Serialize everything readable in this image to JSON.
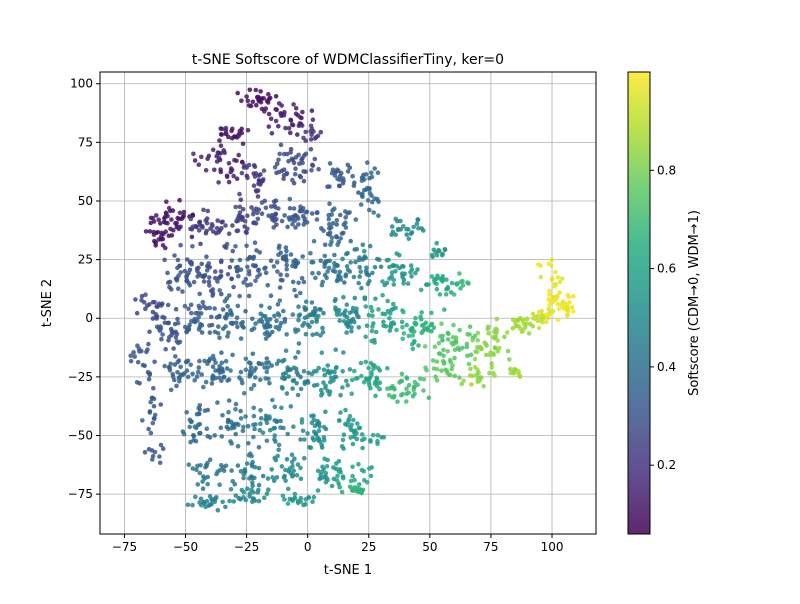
{
  "chart_data": {
    "type": "scatter",
    "title": "t-SNE Softscore of WDMClassifierTiny, ker=0",
    "xlabel": "t-SNE 1",
    "ylabel": "t-SNE 2",
    "xlim": [
      -85,
      118
    ],
    "ylim": [
      -92,
      105
    ],
    "xticks": [
      -75,
      -50,
      -25,
      0,
      25,
      50,
      75,
      100
    ],
    "yticks": [
      -75,
      -50,
      -25,
      0,
      25,
      50,
      75,
      100
    ],
    "grid": true,
    "colormap": "viridis",
    "point_alpha": 0.85,
    "colorbar": {
      "label": "Softscore (CDM→0, WDM→1)",
      "range": [
        0.06,
        1.0
      ],
      "ticks": [
        0.2,
        0.4,
        0.6,
        0.8
      ]
    },
    "clusters": [
      {
        "x": -20,
        "y": 93,
        "rx": 7,
        "ry": 4,
        "n": 30,
        "score": 0.1
      },
      {
        "x": -7,
        "y": 85,
        "rx": 8,
        "ry": 6,
        "n": 35,
        "score": 0.13
      },
      {
        "x": 2,
        "y": 78,
        "rx": 4,
        "ry": 4,
        "n": 14,
        "score": 0.2
      },
      {
        "x": -32,
        "y": 78,
        "rx": 7,
        "ry": 3,
        "n": 22,
        "score": 0.12
      },
      {
        "x": -35,
        "y": 68,
        "rx": 8,
        "ry": 8,
        "n": 38,
        "score": 0.14
      },
      {
        "x": -22,
        "y": 60,
        "rx": 6,
        "ry": 7,
        "n": 28,
        "score": 0.2
      },
      {
        "x": -5,
        "y": 65,
        "rx": 9,
        "ry": 8,
        "n": 45,
        "score": 0.27
      },
      {
        "x": -55,
        "y": 42,
        "rx": 9,
        "ry": 6,
        "n": 45,
        "score": 0.12
      },
      {
        "x": -62,
        "y": 35,
        "rx": 4,
        "ry": 5,
        "n": 16,
        "score": 0.1
      },
      {
        "x": -42,
        "y": 40,
        "rx": 7,
        "ry": 7,
        "n": 32,
        "score": 0.22
      },
      {
        "x": -28,
        "y": 42,
        "rx": 6,
        "ry": 6,
        "n": 26,
        "score": 0.24
      },
      {
        "x": -18,
        "y": 45,
        "rx": 6,
        "ry": 6,
        "n": 28,
        "score": 0.28
      },
      {
        "x": -5,
        "y": 42,
        "rx": 7,
        "ry": 7,
        "n": 32,
        "score": 0.32
      },
      {
        "x": 10,
        "y": 40,
        "rx": 8,
        "ry": 8,
        "n": 36,
        "score": 0.35
      },
      {
        "x": 15,
        "y": 60,
        "rx": 7,
        "ry": 6,
        "n": 28,
        "score": 0.33
      },
      {
        "x": 25,
        "y": 55,
        "rx": 4,
        "ry": 10,
        "n": 30,
        "score": 0.38
      },
      {
        "x": 40,
        "y": 38,
        "rx": 6,
        "ry": 4,
        "n": 24,
        "score": 0.5
      },
      {
        "x": 53,
        "y": 28,
        "rx": 4,
        "ry": 3,
        "n": 12,
        "score": 0.55
      },
      {
        "x": -50,
        "y": 20,
        "rx": 8,
        "ry": 8,
        "n": 40,
        "score": 0.3
      },
      {
        "x": -38,
        "y": 20,
        "rx": 7,
        "ry": 8,
        "n": 38,
        "score": 0.28
      },
      {
        "x": -22,
        "y": 22,
        "rx": 7,
        "ry": 9,
        "n": 40,
        "score": 0.33
      },
      {
        "x": -8,
        "y": 22,
        "rx": 7,
        "ry": 9,
        "n": 42,
        "score": 0.35
      },
      {
        "x": 8,
        "y": 22,
        "rx": 7,
        "ry": 9,
        "n": 40,
        "score": 0.4
      },
      {
        "x": 22,
        "y": 22,
        "rx": 7,
        "ry": 9,
        "n": 40,
        "score": 0.45
      },
      {
        "x": 38,
        "y": 20,
        "rx": 7,
        "ry": 7,
        "n": 34,
        "score": 0.55
      },
      {
        "x": 53,
        "y": 15,
        "rx": 6,
        "ry": 5,
        "n": 26,
        "score": 0.62
      },
      {
        "x": 62,
        "y": 15,
        "rx": 3,
        "ry": 4,
        "n": 10,
        "score": 0.68
      },
      {
        "x": -65,
        "y": 5,
        "rx": 6,
        "ry": 5,
        "n": 22,
        "score": 0.27
      },
      {
        "x": -57,
        "y": -5,
        "rx": 7,
        "ry": 8,
        "n": 34,
        "score": 0.3
      },
      {
        "x": -45,
        "y": 0,
        "rx": 7,
        "ry": 8,
        "n": 38,
        "score": 0.33
      },
      {
        "x": -30,
        "y": 0,
        "rx": 7,
        "ry": 8,
        "n": 38,
        "score": 0.36
      },
      {
        "x": -15,
        "y": 0,
        "rx": 7,
        "ry": 8,
        "n": 40,
        "score": 0.4
      },
      {
        "x": 0,
        "y": 0,
        "rx": 7,
        "ry": 8,
        "n": 42,
        "score": 0.45
      },
      {
        "x": 15,
        "y": 0,
        "rx": 7,
        "ry": 8,
        "n": 40,
        "score": 0.5
      },
      {
        "x": 30,
        "y": 0,
        "rx": 7,
        "ry": 8,
        "n": 38,
        "score": 0.58
      },
      {
        "x": 45,
        "y": -5,
        "rx": 8,
        "ry": 8,
        "n": 42,
        "score": 0.65
      },
      {
        "x": 60,
        "y": -10,
        "rx": 8,
        "ry": 8,
        "n": 40,
        "score": 0.75
      },
      {
        "x": 75,
        "y": -10,
        "rx": 7,
        "ry": 8,
        "n": 38,
        "score": 0.83
      },
      {
        "x": 87,
        "y": -3,
        "rx": 4,
        "ry": 5,
        "n": 22,
        "score": 0.87
      },
      {
        "x": 95,
        "y": 0,
        "rx": 5,
        "ry": 4,
        "n": 20,
        "score": 0.92
      },
      {
        "x": 100,
        "y": 12,
        "rx": 4,
        "ry": 12,
        "n": 40,
        "score": 0.97
      },
      {
        "x": 106,
        "y": 5,
        "rx": 3,
        "ry": 5,
        "n": 16,
        "score": 0.98
      },
      {
        "x": -68,
        "y": -18,
        "rx": 4,
        "ry": 8,
        "n": 20,
        "score": 0.3
      },
      {
        "x": -52,
        "y": -22,
        "rx": 7,
        "ry": 7,
        "n": 32,
        "score": 0.35
      },
      {
        "x": -38,
        "y": -22,
        "rx": 7,
        "ry": 8,
        "n": 36,
        "score": 0.37
      },
      {
        "x": -22,
        "y": -22,
        "rx": 7,
        "ry": 8,
        "n": 38,
        "score": 0.4
      },
      {
        "x": -6,
        "y": -25,
        "rx": 7,
        "ry": 8,
        "n": 38,
        "score": 0.45
      },
      {
        "x": 10,
        "y": -25,
        "rx": 7,
        "ry": 8,
        "n": 38,
        "score": 0.52
      },
      {
        "x": 25,
        "y": -25,
        "rx": 7,
        "ry": 8,
        "n": 36,
        "score": 0.6
      },
      {
        "x": 40,
        "y": -30,
        "rx": 8,
        "ry": 6,
        "n": 32,
        "score": 0.7
      },
      {
        "x": 55,
        "y": -22,
        "rx": 6,
        "ry": 5,
        "n": 24,
        "score": 0.77
      },
      {
        "x": 70,
        "y": -25,
        "rx": 6,
        "ry": 5,
        "n": 22,
        "score": 0.84
      },
      {
        "x": 85,
        "y": -22,
        "rx": 3,
        "ry": 3,
        "n": 10,
        "score": 0.86
      },
      {
        "x": -64,
        "y": -40,
        "rx": 3,
        "ry": 8,
        "n": 16,
        "score": 0.32
      },
      {
        "x": -45,
        "y": -45,
        "rx": 6,
        "ry": 8,
        "n": 30,
        "score": 0.38
      },
      {
        "x": -30,
        "y": -45,
        "rx": 7,
        "ry": 8,
        "n": 34,
        "score": 0.4
      },
      {
        "x": -15,
        "y": -45,
        "rx": 7,
        "ry": 8,
        "n": 36,
        "score": 0.45
      },
      {
        "x": 2,
        "y": -48,
        "rx": 7,
        "ry": 8,
        "n": 36,
        "score": 0.5
      },
      {
        "x": 18,
        "y": -48,
        "rx": 6,
        "ry": 8,
        "n": 30,
        "score": 0.55
      },
      {
        "x": 27,
        "y": -52,
        "rx": 3,
        "ry": 3,
        "n": 10,
        "score": 0.58
      },
      {
        "x": -62,
        "y": -57,
        "rx": 3,
        "ry": 4,
        "n": 10,
        "score": 0.3
      },
      {
        "x": -40,
        "y": -65,
        "rx": 7,
        "ry": 6,
        "n": 28,
        "score": 0.42
      },
      {
        "x": -25,
        "y": -65,
        "rx": 6,
        "ry": 6,
        "n": 26,
        "score": 0.45
      },
      {
        "x": -8,
        "y": -65,
        "rx": 7,
        "ry": 6,
        "n": 30,
        "score": 0.5
      },
      {
        "x": 8,
        "y": -65,
        "rx": 6,
        "ry": 6,
        "n": 26,
        "score": 0.55
      },
      {
        "x": 18,
        "y": -68,
        "rx": 6,
        "ry": 5,
        "n": 22,
        "score": 0.6
      },
      {
        "x": -40,
        "y": -78,
        "rx": 8,
        "ry": 3,
        "n": 26,
        "score": 0.48
      },
      {
        "x": -22,
        "y": -75,
        "rx": 7,
        "ry": 3,
        "n": 24,
        "score": 0.5
      },
      {
        "x": -5,
        "y": -77,
        "rx": 6,
        "ry": 3,
        "n": 20,
        "score": 0.55
      },
      {
        "x": 20,
        "y": -73,
        "rx": 4,
        "ry": 2,
        "n": 14,
        "score": 0.68
      }
    ]
  }
}
